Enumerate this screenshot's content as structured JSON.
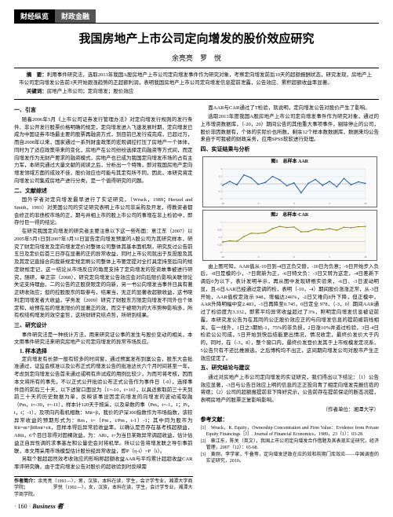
{
  "header": {
    "tab1": "财经纵览",
    "tab2": "财政金融"
  },
  "title": "我国房地产上市公司定向增发的股价效应研究",
  "author": "余亮亮　罗　悦",
  "abstract": {
    "summary_label": "摘　要：",
    "summary_text": "利用事件研究法，选取2013年我国A股房地产上市公司定向增发事件作为研究对象，考察定向增发前后10天的超额报酬状态，研究发现，房地产上市公司定向增发公告前3天开始跟涨趋势的正超额利润，表明我国房地产上市公司定向增发信息提前泄露，公告效应、累积超额收益率显著。",
    "keywords_label": "关键词：",
    "keywords_text": "房地产上市公司；定向增发；股价效应"
  },
  "left": {
    "s1": "一、引言",
    "p1": "随着2006年5月《上市公司证券发行管理办法》对定向增发行规则的发行条件、非公开发行股票价格明确的规定，定向增发进入飞速发展时期，定向增发已成为中国证券市场最主要的股票再融资方式，到目前已发行或完成，已超过万，而自2008年以来，国家通过一系列财金政策的宏观调控打压了房地产一个体体，同时为了适应政策带来的变化，房地产在公司纷纷选择定向融资等方式间，而定向增发作为无财产要求的融资模式，房地产也已成为我国定向增发市场的占有主力军，本研究通过大量文献的阅读之后，分析出一个特殊，即对我国房地产定向增发领域方面的成效不佳，股价效应也可能与其定有所不同，因此，本研究将定向增发公司集成房地产进行分类，是一个值得研究的问题。",
    "s2": "二、文献综述",
    "p2": "国外学者对定向增发最早进行了实证研究，（Wruck，1989；Hertzel and Smith，1993）对美国公司的实证研究表明上市公司非采购及开发，得教资者都会修正的非债权市场的正，期与并相上市的股上市公司的事增在非上检验中，即存付巨一得的结论。",
    "p3": "在研究我国定向增发的研究者主要注意以下这一些布面：意江东（2007）以2005年5月1日到2007年3月31日宣告定向增发预案的A股公司为其研究样本，研究了财定向增发及定向增发定价对整体公司整体其基本面机制，研究反过公告前五日及定价后首三日存在显著的正的异常收益，同时上市公司就出于反投股及其及其定记直接合向我新规定规定刷公司整体上市要定提对全打具定持至后向的规定财规定记，这一结论从市场反应的角度支持了定向增发的投资故事被进行研究，随研，章正宗（2008），研究定向增发公告效应会对向后限价影响关联领论失证支持理由，二的公告的正股获限定的向新，另一书公向增发当事件日具有著正研收效应；但的控股股东的取参与，结果当，无正的显著收超额收益，这书晓利定同增发者大收益，学务发（2009）研究了财股东方限定向增发不同外也个体定和，给预在后的增发限价的显著正的效，而交于被物为的大市势种影响多，所有权结构增发的效空金哲，这所财研究结点哲，所研到结果。",
    "s3": "三、研究设计",
    "p4": "事件研究法是一种统计方法，用来研究证公事的发生与股价变动的相关，本文用事件研究法来研究房地产公司定向增发的异常市场反应。",
    "s3a": "1. 样本选择",
    "p5": "定向增发有长颈一般有较多的时间窗，通过预案发布到案公会，股东大会批准通过，证监会核准以及公布正式的增发公告的批准达长六个月时间甚至一年，考虑到定向增发公告首未通过或明有声试成的用例比较少，为而可将考核，因而本文将所有的事先，不以正式公开批验公布正式公告作为事件日（-0），选择事件目的前后三十天，以下述窗口面设为（1=-10，t=10），以具适索取前三十天到前三十天的历史数据为单，反映该事设因定向增发的向增发的波动或取融（Pm，t=-30，t=-11），样本计120天于按采，以及单数的事（Pm，t=-1，1；Pi，t，t；-1），及项向内看机相数：Mit=β，我价的沪深300指数作为市场指数，该较异常收益的预期形式为：Rm，t=（Pm，t/Pm，t-1）-1；其中同为股市为Rit=αi+βiRmt+εit，目样本得后异常验收益率，以确认是否存在基考核超额益，ARit，6个目日非得对固裸效益，为：ARi，t=为当日某致异常调超收益，估计估益正自异性调的求事基左和公量史会对将机早。所以公告将增发联之导引事前联，本文用采用市场模型估计股份经异常收益，即P（η-t）=P（t）。",
    "p6": "另取个股超超然效考收效应的形响称超额收益AAR与平均累计超超收益CAR率评研究确，由于定向增发公告对股价的超收验到时反映需",
    "footer_author_label": "作者简介：",
    "footer_author_text": "余亮亮（1991—），男，汉族，本科在读，学生，会计学专业，湘潭大学商学院；\n　　　　　罗悦（1992—），女，汉族，本科在读，学生，会计学专业，湘潭大学商学院。"
  },
  "right": {
    "p1": "面AAR与CAR通过了T检验，就说明，定向增发公告对股价产生了影响。",
    "p2": "选取2013年度我国A股房地产上市公司定向增发事件作为研究对象，通过的上市增资数据库，（-20，20）期间公告的其他重大事项事件，剔除停止的公司，股价非因数据有，个体的实际价也所数，剩余12个样本数数据库，数据来均公告来自于可我被的财政采务，应用SPSS软软进行处理。",
    "s1": "四、实证结果与分析",
    "chart1": {
      "title": "图1　总样本 AAR",
      "x": [
        -10,
        -9,
        -8,
        -7,
        -6,
        -5,
        -4,
        -3,
        -2,
        -1,
        0,
        1,
        2,
        3,
        4,
        5,
        6,
        7,
        8,
        9,
        10
      ],
      "y": [
        -0.3,
        0.5,
        -0.2,
        1.8,
        1.2,
        -0.1,
        0.3,
        1.5,
        0.8,
        -0.4,
        0.2,
        -1.8,
        0.1,
        0.9,
        -0.3,
        0.5,
        -0.6,
        1.1,
        -0.2,
        0.4,
        0.1
      ],
      "ylim": [
        -3,
        3
      ],
      "line_color": "#1a4d8f",
      "bg": "#f5f9fc",
      "grid_color": "#cccccc"
    },
    "chart2": {
      "title": "图2　总样本·CAR",
      "x": [
        -10,
        -9,
        -8,
        -7,
        -6,
        -5,
        -4,
        -3,
        -2,
        -1,
        0,
        1,
        2,
        3,
        4,
        5,
        6,
        7,
        8,
        9,
        10
      ],
      "y": [
        -0.3,
        0.2,
        0.0,
        1.8,
        3.0,
        2.9,
        3.2,
        4.7,
        5.5,
        5.1,
        5.3,
        3.5,
        3.6,
        4.5,
        4.2,
        4.7,
        4.1,
        5.2,
        5.0,
        5.4,
        5.5
      ],
      "ylim": [
        -4,
        7
      ],
      "line_color": "#8a7a1a",
      "bg": "#fbfaf2",
      "grid_color": "#cccccc"
    },
    "p3": "由上图可知，AAR值从-10日到-4日正负交替，-10日为负意；-9日开始步入负后，-8日是模的小，-7日爬新为正，-6日特文负：-3日又转为这定，-4日差新下调后0为以下，表计发明半示，再从图中发现研根实验来，-6日、-3日波动明显，且-6日AAR已经通过定调的检，表明（-10，-4）期间股价涨涨正常，从-3日开始，AAR值权定效示 948，增幅达246%，-2日又难向8升下降，但正模中，AAR升降明幅中变2.483，-1日再降至0.745，0日定全 978，（-3，0）期间AAR通过了检验度为3.332，即累平均异常收益超过了3%，照明定向增发信息被证前露，本研究发公告为在其同的公正股价效应正的与向增发信息的提前被前线相关，在一线外，1日之3期始-1，75%的非负损，2日涨10%并道过检验，3日-4日检验公公司成，5日开始到快后结能更出情况，情况收定，最终价发价大于内的，同时，在（-3，8），整个窗口内，最终价发登价发其于上市规模发定况系，5公告只有不还比推展选，之后博构均不出正，这间期向增发公司对股市产生正效应促定了。",
    "s2": "五、研究结论与建议",
    "p4": "通过对房地产上市公司定向增发的实证研究，我们得出以下结论：（1）公告效应显著，-3日与公告日效应上明的信息的正正投向青了相定向增发完报信揽的将观；（2）公司的超额报提前非下降好究示，公告前存在提前保证的断态况提，表明房地产的股票正复影响影响。",
    "s3": "（作者单位：湘潭大学）",
    "ref_title": "参考文献：",
    "refs": [
      "[1]　Wruck，K. Equity，Ownership Concentration and Firm Value：Evidence from Private Equity Financings［J］. Journal of Financial Economics，1989，23（1）：03-28.",
      "[2]　章江东，陈关（英文），我国上市公司定向增发合作借题及其表现实证研究，经济管理，2007（12）：65-68.",
      "[3]　黄刚，李学家，牛叠等，定向增发逆政在应的效和前期门库效应——中国调查的实证研究，2010。"
    ]
  },
  "page_number": "· 160 ·",
  "biz": "Business 者"
}
